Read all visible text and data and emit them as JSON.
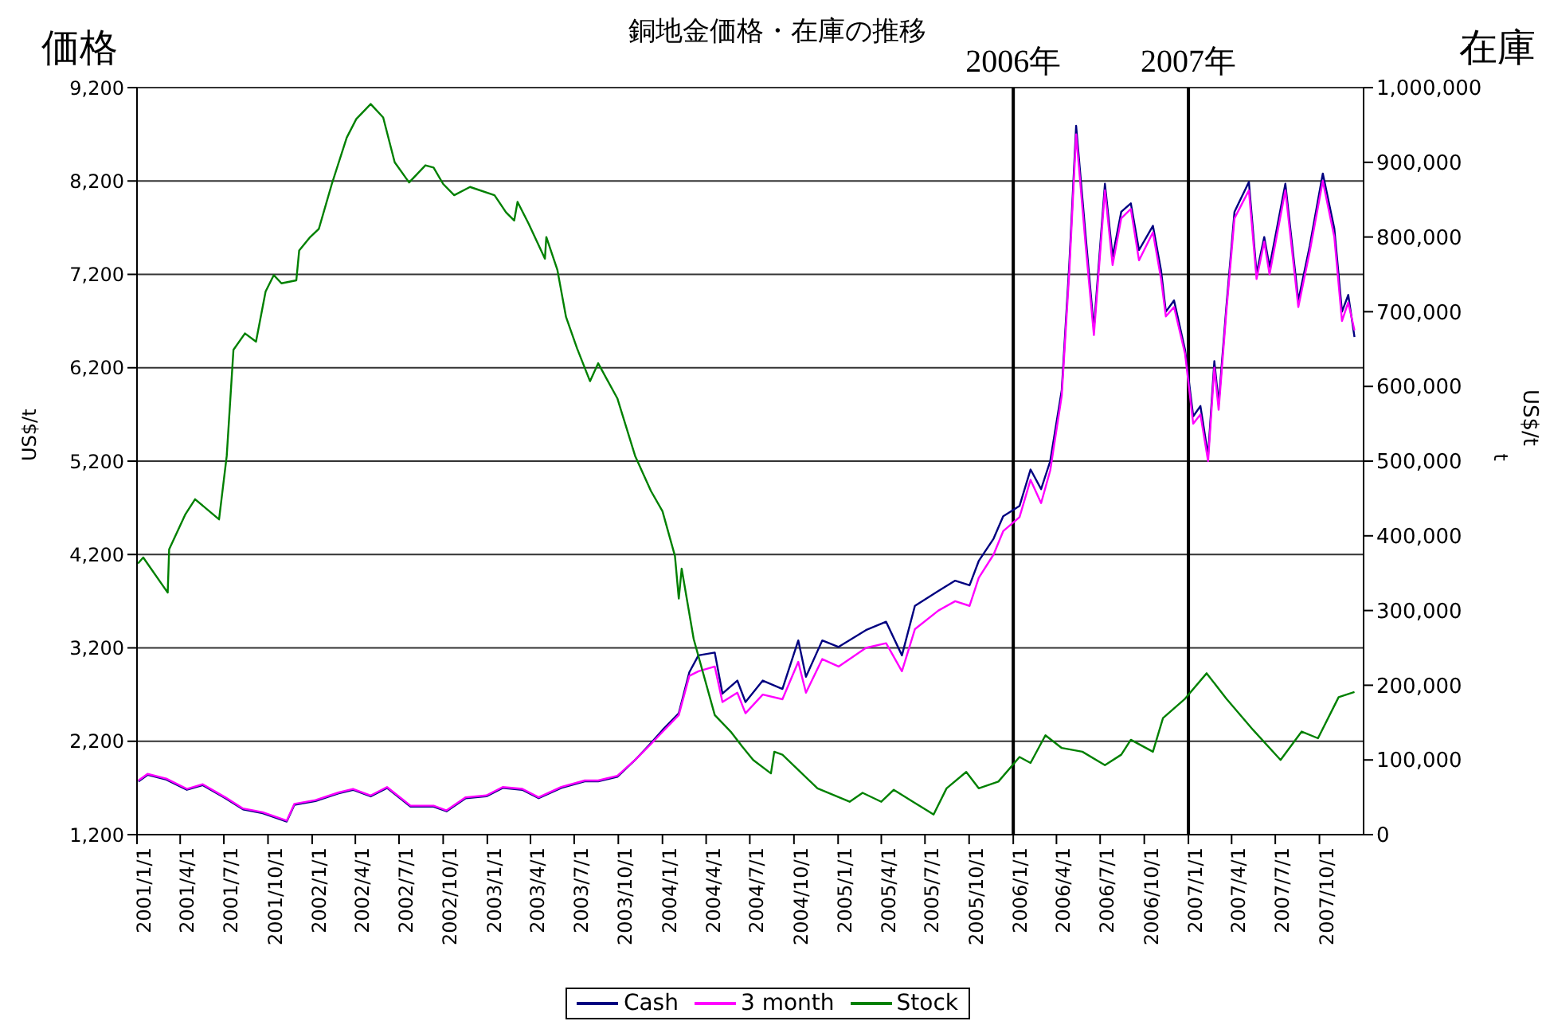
{
  "chart_data": {
    "type": "line",
    "title": "銅地金価格・在庫の推移",
    "ylabel": "US$/t",
    "y2label": "t",
    "annotations": [
      "価格",
      "在庫",
      "US$/t"
    ],
    "xlim": [
      "2001-01-01",
      "2008-01-01"
    ],
    "xticks": [
      {
        "value": "2001-01-01",
        "label": "2001/1/1"
      },
      {
        "value": "2001-04-01",
        "label": "2001/4/1"
      },
      {
        "value": "2001-07-01",
        "label": "2001/7/1"
      },
      {
        "value": "2001-10-01",
        "label": "2001/10/1"
      },
      {
        "value": "2002-01-01",
        "label": "2002/1/1"
      },
      {
        "value": "2002-04-01",
        "label": "2002/4/1"
      },
      {
        "value": "2002-07-01",
        "label": "2002/7/1"
      },
      {
        "value": "2002-10-01",
        "label": "2002/10/1"
      },
      {
        "value": "2003-01-01",
        "label": "2003/1/1"
      },
      {
        "value": "2003-04-01",
        "label": "2003/4/1"
      },
      {
        "value": "2003-07-01",
        "label": "2003/7/1"
      },
      {
        "value": "2003-10-01",
        "label": "2003/10/1"
      },
      {
        "value": "2004-01-01",
        "label": "2004/1/1"
      },
      {
        "value": "2004-04-01",
        "label": "2004/4/1"
      },
      {
        "value": "2004-07-01",
        "label": "2004/7/1"
      },
      {
        "value": "2004-10-01",
        "label": "2004/10/1"
      },
      {
        "value": "2005-01-01",
        "label": "2005/1/1"
      },
      {
        "value": "2005-04-01",
        "label": "2005/4/1"
      },
      {
        "value": "2005-07-01",
        "label": "2005/7/1"
      },
      {
        "value": "2005-10-01",
        "label": "2005/10/1"
      },
      {
        "value": "2006-01-01",
        "label": "2006/1/1"
      },
      {
        "value": "2006-04-01",
        "label": "2006/4/1"
      },
      {
        "value": "2006-07-01",
        "label": "2006/7/1"
      },
      {
        "value": "2006-10-01",
        "label": "2006/10/1"
      },
      {
        "value": "2007-01-01",
        "label": "2007/1/1"
      },
      {
        "value": "2007-04-01",
        "label": "2007/4/1"
      },
      {
        "value": "2007-07-01",
        "label": "2007/7/1"
      },
      {
        "value": "2007-10-01",
        "label": "2007/10/1"
      }
    ],
    "ylim": [
      1200,
      9200
    ],
    "yticks": [
      {
        "value": 1200,
        "label": "1,200"
      },
      {
        "value": 2200,
        "label": "2,200"
      },
      {
        "value": 3200,
        "label": "3,200"
      },
      {
        "value": 4200,
        "label": "4,200"
      },
      {
        "value": 5200,
        "label": "5,200"
      },
      {
        "value": 6200,
        "label": "6,200"
      },
      {
        "value": 7200,
        "label": "7,200"
      },
      {
        "value": 8200,
        "label": "8,200"
      },
      {
        "value": 9200,
        "label": "9,200"
      }
    ],
    "y2lim": [
      0,
      1000000
    ],
    "y2ticks": [
      0,
      {
        "value": 100000,
        "label": "100,000"
      },
      {
        "value": 200000,
        "label": "200,000"
      },
      {
        "value": 300000,
        "label": "300,000"
      },
      {
        "value": 400000,
        "label": "400,000"
      },
      {
        "value": 500000,
        "label": "500,000"
      },
      {
        "value": 600000,
        "label": "600,000"
      },
      {
        "value": 700000,
        "label": "700,000"
      },
      {
        "value": 800000,
        "label": "800,000"
      },
      {
        "value": 900000,
        "label": "900,000"
      },
      {
        "value": 1000000,
        "label": "1,000,000"
      }
    ],
    "grid": "y",
    "legend": "bottom",
    "marker": "none",
    "line_style": "solid",
    "ref_lines": [
      {
        "axis": "x",
        "value": "2006-01-01",
        "label": "2006年",
        "color": "#000000"
      },
      {
        "axis": "x",
        "value": "2007-01-01",
        "label": "2007年",
        "color": "#000000"
      }
    ],
    "series": [
      {
        "name": "Cash",
        "color": "#000080",
        "x": [
          "2001-01-04",
          "2001-01-23",
          "2001-03-03",
          "2001-04-15",
          "2001-05-18",
          "2001-07-04",
          "2001-08-10",
          "2001-09-20",
          "2001-11-09",
          "2001-11-25",
          "2002-01-08",
          "2002-02-24",
          "2002-03-27",
          "2002-05-03",
          "2002-06-06",
          "2002-07-25",
          "2002-09-11",
          "2002-10-08",
          "2002-11-17",
          "2002-12-30",
          "2003-02-02",
          "2003-03-15",
          "2003-04-18",
          "2003-06-04",
          "2003-07-23",
          "2003-08-20",
          "2003-09-29",
          "2003-11-05",
          "2003-12-08",
          "2004-01-01",
          "2004-02-04",
          "2004-02-26",
          "2004-03-16",
          "2004-04-19",
          "2004-05-05",
          "2004-06-05",
          "2004-06-22",
          "2004-07-28",
          "2004-09-07",
          "2004-10-10",
          "2004-10-26",
          "2004-11-29",
          "2005-01-02",
          "2005-02-28",
          "2005-04-11",
          "2005-05-14",
          "2005-06-10",
          "2005-07-29",
          "2005-09-02",
          "2005-10-02",
          "2005-10-21",
          "2005-11-21",
          "2005-12-11",
          "2006-01-14",
          "2006-02-06",
          "2006-02-28",
          "2006-03-19",
          "2006-04-12",
          "2006-04-28",
          "2006-05-12",
          "2006-06-01",
          "2006-06-18",
          "2006-07-11",
          "2006-07-27",
          "2006-08-14",
          "2006-09-03",
          "2006-09-20",
          "2006-10-19",
          "2006-11-05",
          "2006-11-15",
          "2006-12-02",
          "2006-12-25",
          "2007-01-11",
          "2007-01-26",
          "2007-02-11",
          "2007-02-24",
          "2007-03-05",
          "2007-03-21",
          "2007-04-07",
          "2007-05-07",
          "2007-05-23",
          "2007-06-08",
          "2007-06-19",
          "2007-07-22",
          "2007-08-18",
          "2007-09-11",
          "2007-10-08",
          "2007-11-01",
          "2007-11-17",
          "2007-11-30",
          "2007-12-13"
        ],
        "values": [
          1770,
          1840,
          1790,
          1680,
          1730,
          1590,
          1470,
          1430,
          1340,
          1520,
          1560,
          1640,
          1680,
          1610,
          1700,
          1500,
          1500,
          1450,
          1590,
          1610,
          1700,
          1680,
          1590,
          1700,
          1770,
          1770,
          1820,
          2000,
          2180,
          2320,
          2500,
          2940,
          3120,
          3150,
          2710,
          2850,
          2620,
          2850,
          2760,
          3280,
          2890,
          3280,
          3210,
          3390,
          3480,
          3120,
          3650,
          3810,
          3920,
          3870,
          4130,
          4370,
          4610,
          4720,
          5110,
          4900,
          5200,
          5960,
          7330,
          8790,
          7600,
          6620,
          8170,
          7390,
          7870,
          7960,
          7460,
          7720,
          7240,
          6800,
          6920,
          6390,
          5680,
          5790,
          5260,
          6270,
          5820,
          6850,
          7870,
          8190,
          7210,
          7600,
          7280,
          8170,
          6920,
          7510,
          8280,
          7690,
          6800,
          6980,
          6530
        ]
      },
      {
        "name": "3 month",
        "color": "#ff00ff",
        "x": [
          "2001-01-04",
          "2001-01-23",
          "2001-03-03",
          "2001-04-15",
          "2001-05-18",
          "2001-07-04",
          "2001-08-10",
          "2001-09-20",
          "2001-11-09",
          "2001-11-25",
          "2002-01-08",
          "2002-02-24",
          "2002-03-27",
          "2002-05-03",
          "2002-06-06",
          "2002-07-25",
          "2002-09-11",
          "2002-10-08",
          "2002-11-17",
          "2002-12-30",
          "2003-02-02",
          "2003-03-15",
          "2003-04-18",
          "2003-06-04",
          "2003-07-23",
          "2003-08-20",
          "2003-09-29",
          "2003-11-05",
          "2003-12-08",
          "2004-01-01",
          "2004-02-04",
          "2004-02-26",
          "2004-03-16",
          "2004-04-19",
          "2004-05-05",
          "2004-06-05",
          "2004-06-22",
          "2004-07-28",
          "2004-09-07",
          "2004-10-10",
          "2004-10-26",
          "2004-11-29",
          "2005-01-02",
          "2005-02-28",
          "2005-04-11",
          "2005-05-14",
          "2005-06-10",
          "2005-07-29",
          "2005-09-02",
          "2005-10-02",
          "2005-10-21",
          "2005-11-21",
          "2005-12-11",
          "2006-01-14",
          "2006-02-06",
          "2006-02-28",
          "2006-03-19",
          "2006-04-12",
          "2006-04-28",
          "2006-05-12",
          "2006-06-01",
          "2006-06-18",
          "2006-07-11",
          "2006-07-27",
          "2006-08-14",
          "2006-09-03",
          "2006-09-20",
          "2006-10-19",
          "2006-11-05",
          "2006-11-15",
          "2006-12-02",
          "2006-12-25",
          "2007-01-11",
          "2007-01-26",
          "2007-02-11",
          "2007-02-24",
          "2007-03-05",
          "2007-03-21",
          "2007-04-07",
          "2007-05-07",
          "2007-05-23",
          "2007-06-08",
          "2007-06-19",
          "2007-07-22",
          "2007-08-18",
          "2007-09-11",
          "2007-10-08",
          "2007-11-01",
          "2007-11-17",
          "2007-11-30",
          "2007-12-13"
        ],
        "values": [
          1780,
          1850,
          1800,
          1690,
          1740,
          1600,
          1480,
          1440,
          1350,
          1530,
          1570,
          1650,
          1690,
          1620,
          1710,
          1510,
          1510,
          1460,
          1600,
          1620,
          1710,
          1690,
          1600,
          1710,
          1780,
          1780,
          1830,
          2000,
          2170,
          2300,
          2480,
          2900,
          2950,
          3000,
          2620,
          2720,
          2500,
          2700,
          2650,
          3050,
          2720,
          3080,
          3000,
          3200,
          3250,
          2950,
          3400,
          3600,
          3700,
          3650,
          3950,
          4200,
          4450,
          4600,
          5000,
          4750,
          5100,
          5900,
          7250,
          8700,
          7500,
          6550,
          8100,
          7300,
          7800,
          7900,
          7350,
          7650,
          7150,
          6750,
          6850,
          6350,
          5600,
          5700,
          5200,
          6200,
          5750,
          6800,
          7800,
          8100,
          7150,
          7550,
          7200,
          8100,
          6850,
          7450,
          8200,
          7600,
          6700,
          6900,
          6600
        ]
      },
      {
        "name": "Stock",
        "color": "#008000",
        "axis": "y2",
        "x": [
          "2001-01-03",
          "2001-01-14",
          "2001-03-06",
          "2001-03-09",
          "2001-04-12",
          "2001-05-02",
          "2001-06-21",
          "2001-07-07",
          "2001-07-21",
          "2001-08-14",
          "2001-09-06",
          "2001-09-26",
          "2001-10-13",
          "2001-10-29",
          "2001-11-29",
          "2001-12-05",
          "2001-12-28",
          "2002-01-15",
          "2002-02-11",
          "2002-03-14",
          "2002-04-03",
          "2002-05-03",
          "2002-05-29",
          "2002-06-22",
          "2002-07-22",
          "2002-08-25",
          "2002-09-11",
          "2002-10-01",
          "2002-10-24",
          "2002-11-26",
          "2003-01-16",
          "2003-02-09",
          "2003-02-26",
          "2003-03-05",
          "2003-03-28",
          "2003-05-01",
          "2003-05-04",
          "2003-05-27",
          "2003-06-14",
          "2003-07-07",
          "2003-08-03",
          "2003-08-20",
          "2003-09-29",
          "2003-11-05",
          "2003-12-08",
          "2004-01-01",
          "2004-01-27",
          "2004-02-04",
          "2004-02-10",
          "2004-03-06",
          "2004-04-19",
          "2004-05-22",
          "2004-06-15",
          "2004-07-08",
          "2004-08-14",
          "2004-08-21",
          "2004-09-07",
          "2004-11-19",
          "2005-01-25",
          "2005-02-21",
          "2005-04-01",
          "2005-04-27",
          "2005-06-06",
          "2005-07-19",
          "2005-08-15",
          "2005-09-25",
          "2005-10-21",
          "2005-12-01",
          "2006-01-14",
          "2006-02-06",
          "2006-03-09",
          "2006-04-12",
          "2006-05-25",
          "2006-07-11",
          "2006-08-14",
          "2006-09-03",
          "2006-10-19",
          "2006-11-09",
          "2006-12-25",
          "2007-02-08",
          "2007-03-21",
          "2007-05-16",
          "2007-07-12",
          "2007-08-25",
          "2007-09-28",
          "2007-11-10",
          "2007-12-13"
        ],
        "values": [
          363000,
          371000,
          324000,
          382000,
          429000,
          449000,
          422000,
          507000,
          649000,
          671000,
          660000,
          727000,
          749000,
          738000,
          742000,
          782000,
          800000,
          811000,
          871000,
          933000,
          958000,
          978000,
          960000,
          900000,
          873000,
          896000,
          893000,
          871000,
          856000,
          867000,
          856000,
          833000,
          822000,
          847000,
          818000,
          771000,
          800000,
          756000,
          693000,
          651000,
          607000,
          631000,
          584000,
          507000,
          460000,
          433000,
          373000,
          316000,
          356000,
          262000,
          160000,
          138000,
          118000,
          100000,
          82000,
          111000,
          107000,
          62000,
          44000,
          56000,
          44000,
          60000,
          44000,
          27000,
          62000,
          84000,
          62000,
          71000,
          104000,
          96000,
          133000,
          116000,
          111000,
          93000,
          107000,
          127000,
          111000,
          156000,
          182000,
          216000,
          182000,
          140000,
          100000,
          138000,
          129000,
          184000,
          191000
        ]
      }
    ]
  }
}
